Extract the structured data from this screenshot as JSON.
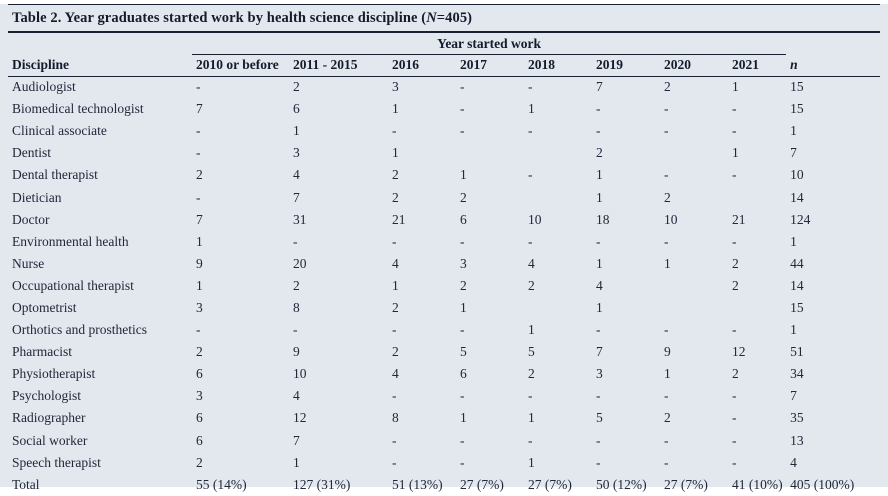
{
  "title": {
    "prefix": "Table 2. Year graduates started work by health science discipline (",
    "n_symbol": "N",
    "suffix": "=405)"
  },
  "table": {
    "spanner_label": "Year started work",
    "columns": [
      "Discipline",
      "2010 or before",
      "2011 - 2015",
      "2016",
      "2017",
      "2018",
      "2019",
      "2020",
      "2021",
      "n"
    ],
    "rows": [
      {
        "discipline": "Audiologist",
        "values": [
          "-",
          "2",
          "3",
          "-",
          "-",
          "7",
          "2",
          "1",
          "15"
        ]
      },
      {
        "discipline": "Biomedical technologist",
        "values": [
          "7",
          "6",
          "1",
          "-",
          "1",
          "-",
          "-",
          "-",
          "15"
        ]
      },
      {
        "discipline": "Clinical associate",
        "values": [
          "-",
          "1",
          "-",
          "-",
          "-",
          "-",
          "-",
          "-",
          "1"
        ]
      },
      {
        "discipline": "Dentist",
        "values": [
          "-",
          "3",
          "1",
          "",
          "",
          "2",
          "",
          "1",
          "7"
        ]
      },
      {
        "discipline": "Dental therapist",
        "values": [
          "2",
          "4",
          "2",
          "1",
          "-",
          "1",
          "-",
          "-",
          "10"
        ]
      },
      {
        "discipline": "Dietician",
        "values": [
          "-",
          "7",
          "2",
          "2",
          "",
          "1",
          "2",
          "",
          "14"
        ]
      },
      {
        "discipline": "Doctor",
        "values": [
          "7",
          "31",
          "21",
          "6",
          "10",
          "18",
          "10",
          "21",
          "124"
        ]
      },
      {
        "discipline": "Environmental health",
        "values": [
          "1",
          "-",
          "-",
          "-",
          "-",
          "-",
          "-",
          "-",
          "1"
        ]
      },
      {
        "discipline": "Nurse",
        "values": [
          "9",
          "20",
          "4",
          "3",
          "4",
          "1",
          "1",
          "2",
          "44"
        ]
      },
      {
        "discipline": "Occupational therapist",
        "values": [
          "1",
          "2",
          "1",
          "2",
          "2",
          "4",
          "",
          "2",
          "14"
        ]
      },
      {
        "discipline": "Optometrist",
        "values": [
          "3",
          "8",
          "2",
          "1",
          "",
          "1",
          "",
          "",
          "15"
        ]
      },
      {
        "discipline": "Orthotics and prosthetics",
        "values": [
          "-",
          "-",
          "-",
          "-",
          "1",
          "-",
          "-",
          "-",
          "1"
        ]
      },
      {
        "discipline": "Pharmacist",
        "values": [
          "2",
          "9",
          "2",
          "5",
          "5",
          "7",
          "9",
          "12",
          "51"
        ]
      },
      {
        "discipline": "Physiotherapist",
        "values": [
          "6",
          "10",
          "4",
          "6",
          "2",
          "3",
          "1",
          "2",
          "34"
        ]
      },
      {
        "discipline": "Psychologist",
        "values": [
          "3",
          "4",
          "-",
          "-",
          "-",
          "-",
          "-",
          "-",
          "7"
        ]
      },
      {
        "discipline": "Radiographer",
        "values": [
          "6",
          "12",
          "8",
          "1",
          "1",
          "5",
          "2",
          "-",
          "35"
        ]
      },
      {
        "discipline": "Social worker",
        "values": [
          "6",
          "7",
          "-",
          "-",
          "-",
          "-",
          "-",
          "-",
          "13"
        ]
      },
      {
        "discipline": "Speech therapist",
        "values": [
          "2",
          "1",
          "-",
          "-",
          "1",
          "-",
          "-",
          "-",
          "4"
        ]
      },
      {
        "discipline": "Total",
        "values": [
          "55 (14%)",
          "127 (31%)",
          "51 (13%)",
          "27 (7%)",
          "27 (7%)",
          "50 (12%)",
          "27 (7%)",
          "41 (10%)",
          "405 (100%)"
        ]
      }
    ]
  },
  "colors": {
    "card_background": "#e3e7ee",
    "text": "#20283a",
    "heading_text": "#131b2c",
    "rule": "#1a2232"
  }
}
